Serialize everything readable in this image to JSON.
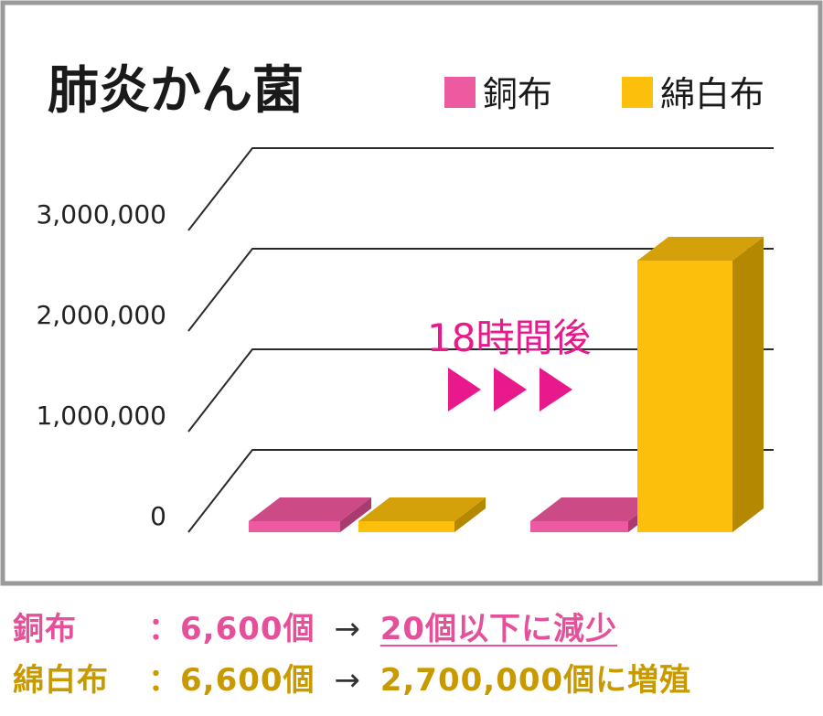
{
  "chart_data": {
    "type": "bar",
    "title": "肺炎かん菌",
    "categories": [
      "",
      ""
    ],
    "series": [
      {
        "name": "銅布",
        "color": "#ec5a9f",
        "values": [
          6600,
          20
        ]
      },
      {
        "name": "綿白布",
        "color": "#fcbf0b",
        "values": [
          6600,
          2700000
        ]
      }
    ],
    "yticks": [
      "0",
      "1,000,000",
      "2,000,000",
      "3,000,000"
    ],
    "ylim": [
      0,
      3000000
    ],
    "annotation": "18時間後",
    "legend": "top-right",
    "grid": true
  },
  "captions": {
    "copper": {
      "label": "銅布",
      "colon": "：",
      "initial": "6,600個",
      "arrow": "→",
      "result": "20個以下に減少"
    },
    "cotton": {
      "label": "綿白布",
      "colon": "：",
      "initial": "6,600個",
      "arrow": "→",
      "result": "2,700,000個に増殖"
    }
  },
  "colors": {
    "copper": "#ec5a9f",
    "copper_top": "#cc4b86",
    "copper_side": "#a83c6e",
    "cotton": "#fcbf0b",
    "cotton_top": "#d5a10a",
    "cotton_side": "#b48800",
    "arrow": "#e8198b",
    "frame": "#9a9a9a"
  }
}
